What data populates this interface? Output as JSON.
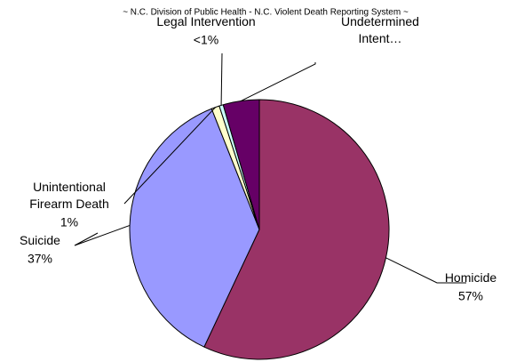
{
  "chart_data": {
    "type": "pie",
    "title": "~ N.C. Division of Public Health - N.C. Violent Death Reporting System ~",
    "categories": [
      "Homicide",
      "Suicide",
      "Unintentional Firearm Death",
      "Legal Intervention",
      "Undetermined Intent…"
    ],
    "values": [
      57,
      37,
      1,
      0.5,
      4.5
    ],
    "value_labels": [
      "57%",
      "37%",
      "1%",
      "<1%",
      null
    ],
    "colors": [
      "#993366",
      "#9999ff",
      "#ffffcc",
      "#ccffff",
      "#660066"
    ]
  }
}
